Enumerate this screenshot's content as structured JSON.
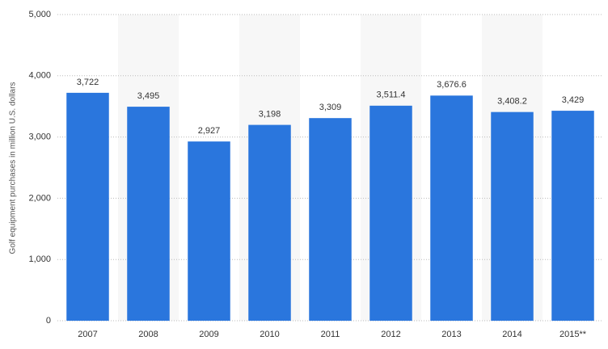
{
  "chart_data": {
    "type": "bar",
    "y_label": "Golf equipment purchases in million U.S. dollars",
    "categories": [
      "2007",
      "2008",
      "2009",
      "2010",
      "2011",
      "2012",
      "2013",
      "2014",
      "2015**"
    ],
    "values": [
      3722,
      3495,
      2927,
      3198,
      3309,
      3511.4,
      3676.6,
      3408.2,
      3429
    ],
    "value_labels": [
      "3,722",
      "3,495",
      "2,927",
      "3,198",
      "3,309",
      "3,511.4",
      "3,676.6",
      "3,408.2",
      "3,429"
    ],
    "color": "#2a76dd",
    "ylim": [
      0,
      5000
    ],
    "yticks": [
      0,
      {
        "value": 1000,
        "label": "1,000"
      },
      {
        "value": 2000,
        "label": "2,000"
      },
      {
        "value": 3000,
        "label": "3,000"
      },
      {
        "value": 4000,
        "label": "4,000"
      },
      {
        "value": 5000,
        "label": "5,000"
      }
    ],
    "grid": true
  }
}
